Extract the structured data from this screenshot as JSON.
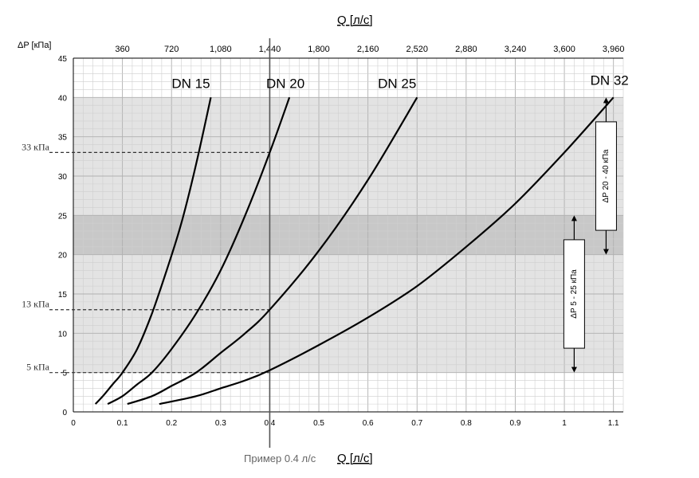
{
  "chart_data": {
    "type": "line",
    "y_axis_label": "ΔP [кПа]",
    "x_axis_title_bottom": "Q [л/с]",
    "x_axis_title_top": "Q [л/с]",
    "xlim": [
      0,
      1.12
    ],
    "ylim": [
      0,
      45
    ],
    "grid": true,
    "x_ticks_bottom": [
      {
        "value": 0,
        "label": "0"
      },
      {
        "value": 0.1,
        "label": "0.1"
      },
      {
        "value": 0.2,
        "label": "0.2"
      },
      {
        "value": 0.3,
        "label": "0.3"
      },
      {
        "value": 0.4,
        "label": "0.4"
      },
      {
        "value": 0.5,
        "label": "0.5"
      },
      {
        "value": 0.6,
        "label": "0.6"
      },
      {
        "value": 0.7,
        "label": "0.7"
      },
      {
        "value": 0.8,
        "label": "0.8"
      },
      {
        "value": 0.9,
        "label": "0.9"
      },
      {
        "value": 1.0,
        "label": "1"
      },
      {
        "value": 1.1,
        "label": "1.1"
      }
    ],
    "x_ticks_top": [
      {
        "value": 0.1,
        "label": "360"
      },
      {
        "value": 0.2,
        "label": "720"
      },
      {
        "value": 0.3,
        "label": "1,080"
      },
      {
        "value": 0.4,
        "label": "1,440"
      },
      {
        "value": 0.5,
        "label": "1,800"
      },
      {
        "value": 0.6,
        "label": "2,160"
      },
      {
        "value": 0.7,
        "label": "2,520"
      },
      {
        "value": 0.8,
        "label": "2,880"
      },
      {
        "value": 0.9,
        "label": "3,240"
      },
      {
        "value": 1.0,
        "label": "3,600"
      },
      {
        "value": 1.1,
        "label": "3,960"
      }
    ],
    "y_ticks": [
      0,
      5,
      10,
      15,
      20,
      25,
      30,
      35,
      40,
      45
    ],
    "bands": [
      {
        "y_from": 5,
        "y_to": 40,
        "shade": "light"
      },
      {
        "y_from": 20,
        "y_to": 25,
        "shade": "dark"
      }
    ],
    "series": [
      {
        "name": "DN 15",
        "points": [
          [
            0.045,
            1.0
          ],
          [
            0.06,
            2.0
          ],
          [
            0.08,
            3.5
          ],
          [
            0.1,
            5.0
          ],
          [
            0.13,
            8.0
          ],
          [
            0.16,
            12.5
          ],
          [
            0.19,
            18.0
          ],
          [
            0.22,
            24.0
          ],
          [
            0.25,
            31.5
          ],
          [
            0.28,
            40.0
          ]
        ]
      },
      {
        "name": "DN 20",
        "points": [
          [
            0.07,
            1.0
          ],
          [
            0.1,
            2.0
          ],
          [
            0.13,
            3.5
          ],
          [
            0.16,
            5.0
          ],
          [
            0.2,
            8.0
          ],
          [
            0.25,
            12.5
          ],
          [
            0.3,
            18.0
          ],
          [
            0.35,
            25.0
          ],
          [
            0.4,
            33.0
          ],
          [
            0.44,
            40.0
          ]
        ]
      },
      {
        "name": "DN 25",
        "points": [
          [
            0.11,
            1.0
          ],
          [
            0.16,
            2.0
          ],
          [
            0.2,
            3.3
          ],
          [
            0.25,
            5.0
          ],
          [
            0.3,
            7.5
          ],
          [
            0.35,
            10.0
          ],
          [
            0.4,
            13.0
          ],
          [
            0.5,
            20.5
          ],
          [
            0.6,
            29.5
          ],
          [
            0.7,
            40.0
          ]
        ]
      },
      {
        "name": "DN 32",
        "points": [
          [
            0.175,
            1.0
          ],
          [
            0.25,
            2.0
          ],
          [
            0.3,
            3.0
          ],
          [
            0.35,
            4.0
          ],
          [
            0.4,
            5.3
          ],
          [
            0.5,
            8.5
          ],
          [
            0.6,
            12.0
          ],
          [
            0.7,
            16.0
          ],
          [
            0.8,
            21.0
          ],
          [
            0.9,
            26.5
          ],
          [
            1.0,
            33.0
          ],
          [
            1.1,
            40.0
          ]
        ]
      }
    ],
    "reference_lines": [
      {
        "y": 33,
        "label": "33 кПа"
      },
      {
        "y": 13,
        "label": "13 кПа"
      },
      {
        "y": 5,
        "label": "5 кПа"
      }
    ],
    "example": {
      "x": 0.4,
      "label": "Пример  0.4 л/с"
    },
    "range_annotations": [
      {
        "label": "ΔP 20 - 40 кПа",
        "y_from": 20,
        "y_to": 40,
        "x": 1.085
      },
      {
        "label": "ΔP 5 - 25 кПа",
        "y_from": 5,
        "y_to": 25,
        "x": 1.02
      }
    ]
  }
}
